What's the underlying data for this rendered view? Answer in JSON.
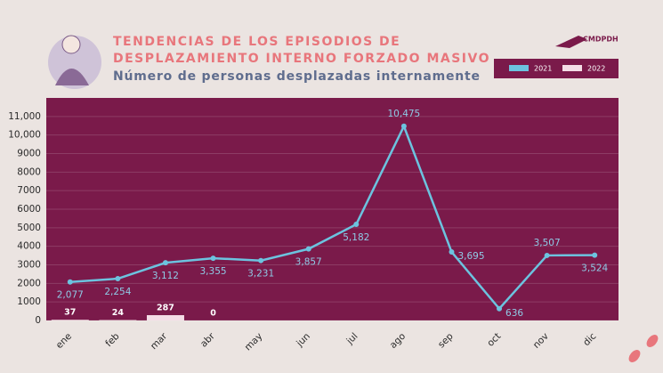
{
  "chart_data": {
    "type": "line-bar",
    "title": [
      "TENDENCIAS DE LOS EPISODIOS DE",
      "DESPLAZAMIENTO INTERNO FORZADO MASIVO"
    ],
    "subtitle": "Número de personas desplazadas internamente",
    "logo": "CMDPDH",
    "categories": [
      "ene",
      "feb",
      "mar",
      "abr",
      "may",
      "jun",
      "jul",
      "ago",
      "sep",
      "oct",
      "nov",
      "dic"
    ],
    "series": [
      {
        "name": "2021",
        "kind": "line",
        "color": "#6cc3df",
        "values": [
          2077,
          2254,
          3112,
          3355,
          3231,
          3857,
          5182,
          10475,
          3695,
          636,
          3507,
          3524
        ],
        "value_labels": [
          "2,077",
          "2,254",
          "3,112",
          "3,355",
          "3,231",
          "3,857",
          "5,182",
          "10,475",
          "3,695",
          "636",
          "3,507",
          "3,524"
        ]
      },
      {
        "name": "2022",
        "kind": "bar",
        "color": "#f4dde6",
        "values": [
          37,
          24,
          287,
          0,
          null,
          null,
          null,
          null,
          null,
          null,
          null,
          null
        ]
      }
    ],
    "ylim": [
      0,
      12000
    ],
    "yticks": [
      0,
      1000,
      2000,
      3000,
      4000,
      5000,
      6000,
      7000,
      8000,
      9000,
      {
        "value": 10000,
        "label": "10,000"
      },
      {
        "value": 11000,
        "label": "11,000"
      }
    ],
    "grid": true
  }
}
